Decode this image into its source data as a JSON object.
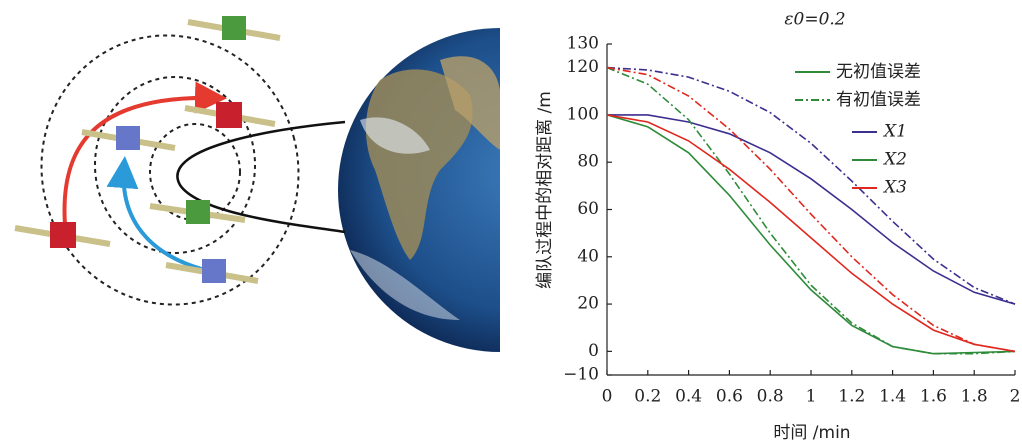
{
  "chart_data": {
    "type": "line",
    "title": "ε0=0.2",
    "xlabel": "时间 /min",
    "ylabel": "编队过程中的相对距离 /m",
    "x": [
      0,
      0.2,
      0.4,
      0.6,
      0.8,
      1.0,
      1.2,
      1.4,
      1.6,
      1.8,
      2.0
    ],
    "xlim": [
      0,
      2
    ],
    "xticks": [
      0,
      0.2,
      0.4,
      0.6,
      0.8,
      1,
      1.2,
      1.4,
      1.6,
      1.8,
      2
    ],
    "ylim": [
      -10,
      130
    ],
    "yticks": [
      {
        "value": -10,
        "label": "−10"
      },
      0,
      20,
      40,
      60,
      80,
      100,
      120,
      130
    ],
    "style_legend": [
      "无初值误差",
      "有初值误差"
    ],
    "series": [
      {
        "name": "X1",
        "color": "#3b2f8f",
        "values": [
          100,
          100,
          97,
          92,
          84,
          73,
          60,
          46,
          34,
          25,
          20
        ],
        "values_initial_error": [
          120,
          119,
          116,
          110,
          101,
          88,
          72,
          55,
          39,
          27,
          20
        ]
      },
      {
        "name": "X2",
        "color": "#2e8b3a",
        "values": [
          100,
          95,
          84,
          66,
          45,
          26,
          11,
          2,
          -1,
          -0.5,
          0
        ],
        "values_initial_error": [
          120,
          113,
          98,
          75,
          50,
          28,
          12,
          2,
          -1,
          -1,
          0
        ]
      },
      {
        "name": "X3",
        "color": "#e0281e",
        "values": [
          100,
          97,
          89,
          77,
          63,
          48,
          33,
          20,
          9,
          3,
          0
        ],
        "values_initial_error": [
          120,
          117,
          108,
          94,
          77,
          58,
          40,
          24,
          11,
          3,
          0
        ]
      }
    ]
  }
}
